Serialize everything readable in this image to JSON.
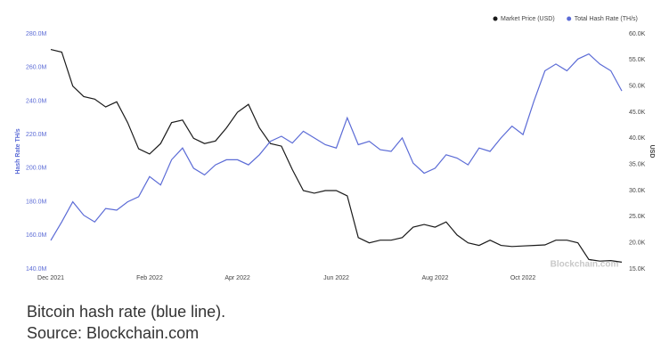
{
  "chart_data": {
    "type": "line",
    "y_label": "Hash Rate TH/s",
    "y2_label": "USD",
    "annotation": "Blockchain.com",
    "categories": [
      "Dec 2021",
      null,
      null,
      null,
      null,
      null,
      null,
      null,
      null,
      "Feb 2022",
      null,
      null,
      null,
      null,
      null,
      null,
      null,
      "Apr 2022",
      null,
      null,
      null,
      null,
      null,
      null,
      null,
      null,
      "Jun 2022",
      null,
      null,
      null,
      null,
      null,
      null,
      null,
      null,
      "Aug 2022",
      null,
      null,
      null,
      null,
      null,
      null,
      null,
      "Oct 2022",
      null,
      null,
      null,
      null,
      null,
      null,
      null,
      null,
      null
    ],
    "series": [
      {
        "name": "Market Price (USD)",
        "color": "#1a1a1a",
        "axis": "y2",
        "values": [
          57,
          56.5,
          50,
          48,
          47.5,
          46,
          47,
          43,
          38,
          37,
          39,
          43,
          43.5,
          40,
          39,
          39.5,
          42,
          45,
          46.5,
          42,
          39,
          38.5,
          34,
          30,
          29.5,
          30,
          30,
          29,
          21,
          20,
          20.5,
          20.5,
          21,
          23,
          23.5,
          23,
          24,
          21.5,
          20,
          19.5,
          20.5,
          19.5,
          19.3,
          19.4,
          19.5,
          19.6,
          20.5,
          20.5,
          20,
          16.8,
          16.5,
          16.6,
          16.3
        ]
      },
      {
        "name": "Total Hash Rate (TH/s)",
        "color": "#5b6bd6",
        "axis": "y",
        "values": [
          157,
          168,
          180,
          172,
          168,
          176,
          175,
          180,
          183,
          195,
          190,
          205,
          212,
          200,
          196,
          202,
          205,
          205,
          202,
          208,
          216,
          219,
          215,
          222,
          218,
          214,
          212,
          230,
          214,
          216,
          211,
          210,
          218,
          203,
          197,
          200,
          208,
          206,
          202,
          212,
          210,
          218,
          225,
          220,
          240,
          258,
          262,
          258,
          265,
          268,
          262,
          258,
          246
        ]
      }
    ],
    "ylim": [
      140,
      280
    ],
    "yticks": [
      {
        "value": 140,
        "label": "140.0M"
      },
      {
        "value": 160,
        "label": "160.0M"
      },
      {
        "value": 180,
        "label": "180.0M"
      },
      {
        "value": 200,
        "label": "200.0M"
      },
      {
        "value": 220,
        "label": "220.0M"
      },
      {
        "value": 240,
        "label": "240.0M"
      },
      {
        "value": 260,
        "label": "260.0M"
      },
      {
        "value": 280,
        "label": "280.0M"
      }
    ],
    "y2lim": [
      15,
      60
    ],
    "y2ticks": [
      {
        "value": 15,
        "label": "15.0K"
      },
      {
        "value": 20,
        "label": "20.0K"
      },
      {
        "value": 25,
        "label": "25.0K"
      },
      {
        "value": 30,
        "label": "30.0K"
      },
      {
        "value": 35,
        "label": "35.0K"
      },
      {
        "value": 40,
        "label": "40.0K"
      },
      {
        "value": 45,
        "label": "45.0K"
      },
      {
        "value": 50,
        "label": "50.0K"
      },
      {
        "value": 55,
        "label": "55.0K"
      },
      {
        "value": 60,
        "label": "60.0K"
      }
    ],
    "legend": "top-right"
  },
  "caption": [
    "Bitcoin hash rate (blue line).",
    "Source: Blockchain.com"
  ]
}
